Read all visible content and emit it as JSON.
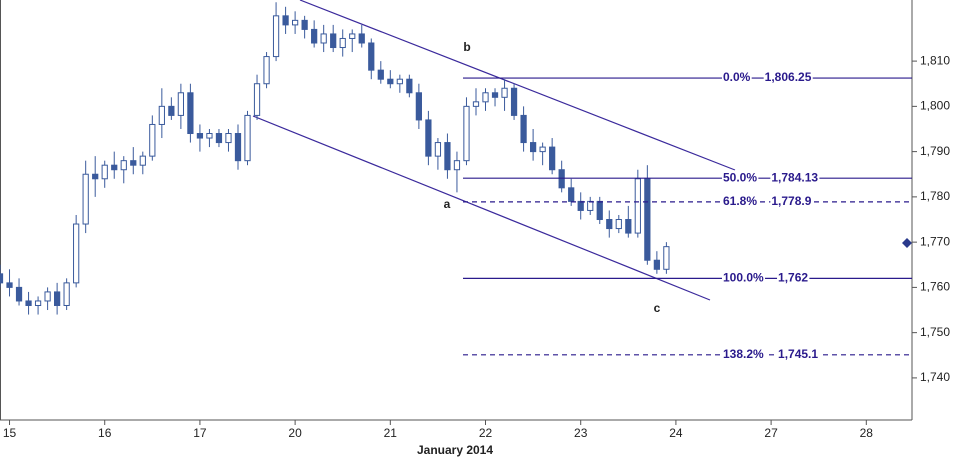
{
  "chart_data": {
    "type": "candlestick",
    "x_label": "January 2014",
    "xlim": [
      -0.1,
      9.48
    ],
    "xticks": [
      {
        "value": 0,
        "label": "15"
      },
      {
        "value": 1,
        "label": "16"
      },
      {
        "value": 2,
        "label": "17"
      },
      {
        "value": 3,
        "label": "20"
      },
      {
        "value": 4,
        "label": "21"
      },
      {
        "value": 5,
        "label": "22"
      },
      {
        "value": 6,
        "label": "23"
      },
      {
        "value": 7,
        "label": "24"
      },
      {
        "value": 8,
        "label": "27"
      },
      {
        "value": 9,
        "label": "28"
      }
    ],
    "ylim": [
      1730.7,
      1823.5
    ],
    "yticks": [
      {
        "value": 1740,
        "label": "1,740"
      },
      {
        "value": 1750,
        "label": "1,750"
      },
      {
        "value": 1760,
        "label": "1,760"
      },
      {
        "value": 1770,
        "label": "1,770"
      },
      {
        "value": 1780,
        "label": "1,780"
      },
      {
        "value": 1790,
        "label": "1,790"
      },
      {
        "value": 1800,
        "label": "1,800"
      },
      {
        "value": 1810,
        "label": "1,810"
      }
    ],
    "color": "#3a5a9c",
    "ohlc": [
      [
        -0.1,
        1763,
        1765,
        1760,
        1761
      ],
      [
        0.0,
        1761,
        1764,
        1758,
        1760
      ],
      [
        0.1,
        1760,
        1762,
        1756,
        1757
      ],
      [
        0.2,
        1757,
        1759,
        1754,
        1756
      ],
      [
        0.3,
        1756,
        1758,
        1754,
        1757
      ],
      [
        0.4,
        1757,
        1760,
        1755,
        1759
      ],
      [
        0.5,
        1759,
        1761,
        1754,
        1756
      ],
      [
        0.6,
        1756,
        1762,
        1755,
        1761
      ],
      [
        0.7,
        1761,
        1776,
        1760,
        1774
      ],
      [
        0.8,
        1774,
        1788,
        1772,
        1785
      ],
      [
        0.9,
        1785,
        1789,
        1780,
        1784
      ],
      [
        1.0,
        1784,
        1788,
        1782,
        1787
      ],
      [
        1.1,
        1787,
        1790,
        1784,
        1786
      ],
      [
        1.2,
        1786,
        1789,
        1783,
        1788
      ],
      [
        1.3,
        1788,
        1791,
        1785,
        1787
      ],
      [
        1.4,
        1787,
        1790,
        1785,
        1789
      ],
      [
        1.5,
        1789,
        1798,
        1788,
        1796
      ],
      [
        1.6,
        1796,
        1804,
        1793,
        1800
      ],
      [
        1.7,
        1800,
        1802,
        1797,
        1798
      ],
      [
        1.8,
        1798,
        1805,
        1795,
        1803
      ],
      [
        1.9,
        1803,
        1805,
        1792,
        1794
      ],
      [
        2.0,
        1794,
        1796,
        1790,
        1793
      ],
      [
        2.1,
        1793,
        1795,
        1791,
        1794
      ],
      [
        2.2,
        1794,
        1795,
        1791,
        1792
      ],
      [
        2.3,
        1792,
        1795,
        1790,
        1794
      ],
      [
        2.4,
        1794,
        1796,
        1786,
        1788
      ],
      [
        2.5,
        1788,
        1799,
        1787,
        1798
      ],
      [
        2.6,
        1798,
        1807,
        1797,
        1805
      ],
      [
        2.7,
        1805,
        1812,
        1804,
        1811
      ],
      [
        2.8,
        1811,
        1823,
        1810,
        1820
      ],
      [
        2.9,
        1820,
        1822,
        1816,
        1818
      ],
      [
        3.0,
        1818,
        1821,
        1816,
        1819
      ],
      [
        3.1,
        1819,
        1820,
        1815,
        1817
      ],
      [
        3.2,
        1817,
        1819,
        1813,
        1814
      ],
      [
        3.3,
        1814,
        1818,
        1812,
        1816
      ],
      [
        3.4,
        1816,
        1818,
        1812,
        1813
      ],
      [
        3.5,
        1813,
        1817,
        1811,
        1815
      ],
      [
        3.6,
        1815,
        1817,
        1812,
        1816
      ],
      [
        3.7,
        1816,
        1818,
        1813,
        1814
      ],
      [
        3.8,
        1814,
        1815,
        1806,
        1808
      ],
      [
        3.9,
        1808,
        1810,
        1805,
        1806
      ],
      [
        4.0,
        1806,
        1808,
        1804,
        1805
      ],
      [
        4.1,
        1805,
        1807,
        1803,
        1806
      ],
      [
        4.2,
        1806,
        1807,
        1802,
        1803
      ],
      [
        4.3,
        1803,
        1805,
        1795,
        1797
      ],
      [
        4.4,
        1797,
        1799,
        1787,
        1789
      ],
      [
        4.5,
        1789,
        1793,
        1786,
        1792
      ],
      [
        4.6,
        1792,
        1794,
        1784,
        1786
      ],
      [
        4.7,
        1786,
        1790,
        1781,
        1788
      ],
      [
        4.8,
        1788,
        1802,
        1787,
        1800
      ],
      [
        4.9,
        1800,
        1804,
        1798,
        1801
      ],
      [
        5.0,
        1801,
        1804,
        1799,
        1803
      ],
      [
        5.1,
        1803,
        1804,
        1800,
        1802
      ],
      [
        5.2,
        1802,
        1806,
        1799,
        1804
      ],
      [
        5.3,
        1804,
        1805,
        1797,
        1798
      ],
      [
        5.4,
        1798,
        1800,
        1790,
        1792
      ],
      [
        5.5,
        1792,
        1795,
        1788,
        1790
      ],
      [
        5.6,
        1790,
        1792,
        1787,
        1791
      ],
      [
        5.7,
        1791,
        1793,
        1785,
        1786
      ],
      [
        5.8,
        1786,
        1788,
        1781,
        1782
      ],
      [
        5.9,
        1782,
        1784,
        1778,
        1779
      ],
      [
        6.0,
        1779,
        1781,
        1775,
        1777
      ],
      [
        6.1,
        1777,
        1780,
        1776,
        1779
      ],
      [
        6.2,
        1779,
        1780,
        1774,
        1775
      ],
      [
        6.3,
        1775,
        1777,
        1771,
        1773
      ],
      [
        6.4,
        1773,
        1776,
        1772,
        1775
      ],
      [
        6.5,
        1775,
        1778,
        1771,
        1772
      ],
      [
        6.6,
        1772,
        1786,
        1771,
        1784
      ],
      [
        6.7,
        1784,
        1787,
        1765,
        1766
      ],
      [
        6.8,
        1766,
        1768,
        1763,
        1764
      ],
      [
        6.9,
        1764,
        1770,
        1763,
        1769
      ]
    ],
    "fib_color": "#2a1a8c",
    "fib_levels": [
      {
        "level": "0.0%",
        "value": 1806.25,
        "value_label": "1,806.25",
        "style": "solid"
      },
      {
        "level": "50.0%",
        "value": 1784.13,
        "value_label": "1,784.13",
        "style": "solid"
      },
      {
        "level": "61.8%",
        "value": 1778.9,
        "value_label": "1,778.9",
        "style": "dashed"
      },
      {
        "level": "100.0%",
        "value": 1762,
        "value_label": "1,762",
        "style": "solid"
      },
      {
        "level": "138.2%",
        "value": 1745.1,
        "value_label": "1,745.1",
        "style": "dashed"
      }
    ],
    "annotations": [
      "a",
      "b",
      "c"
    ]
  }
}
